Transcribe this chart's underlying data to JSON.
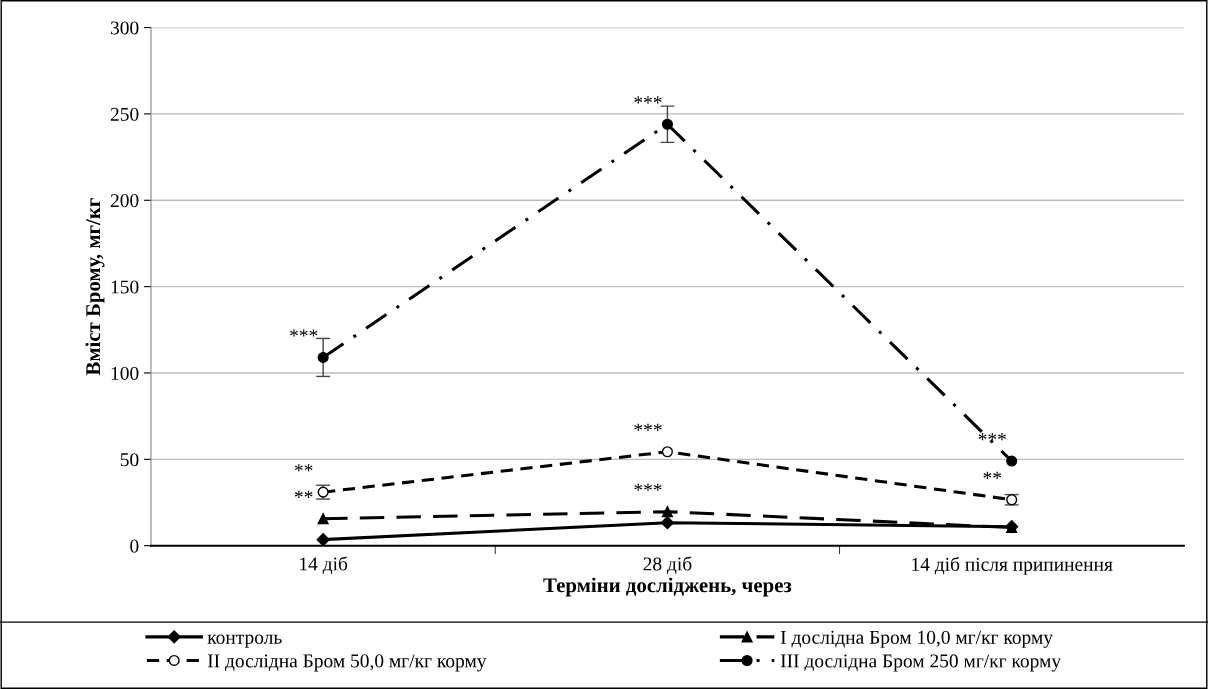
{
  "chart_data": {
    "type": "line",
    "xlabel": "Терміни досліджень, через",
    "ylabel": "Вміст Брому, мг/кг",
    "categories": [
      "14 діб",
      "28 діб",
      "14 діб після припинення"
    ],
    "ylim": [
      0,
      300
    ],
    "yticks": [
      0,
      50,
      100,
      150,
      200,
      250,
      300
    ],
    "grid": "y",
    "legend": "bottom",
    "series": [
      {
        "name": "контроль",
        "color": "#000000",
        "values": [
          3.5,
          13.3,
          11
        ],
        "marker": "diamond",
        "line_style": "solid"
      },
      {
        "name": "I дослідна Бром 10,0 мг/кг корму",
        "color": "#000000",
        "values": [
          15.6,
          19.7,
          10.5
        ],
        "marker": "triangle",
        "line_style": "dashed"
      },
      {
        "name": "II дослідна Бром 50,0 мг/кг корму",
        "color": "#000000",
        "values": [
          31,
          54.4,
          26.6
        ],
        "errors": [
          4,
          null,
          3
        ],
        "marker": "circle-open",
        "line_style": "dotted"
      },
      {
        "name": "III дослідна Бром 250 мг/кг корму",
        "color": "#000000",
        "values": [
          109,
          244,
          49
        ],
        "errors": [
          11,
          10.5,
          null
        ],
        "marker": "circle",
        "line_style": "dashdot"
      }
    ],
    "annotations": [
      {
        "text": "***",
        "x": "14 діб",
        "y": 109
      },
      {
        "text": "**",
        "x": "14 діб",
        "y": 31
      },
      {
        "text": "**",
        "x": "14 діб",
        "y": 15.6
      },
      {
        "text": "***",
        "x": "28 діб",
        "y": 244
      },
      {
        "text": "***",
        "x": "28 діб",
        "y": 54.4
      },
      {
        "text": "***",
        "x": "28 діб",
        "y": 19.7
      },
      {
        "text": "***",
        "x": "14 діб після припинення",
        "y": 49
      },
      {
        "text": "**",
        "x": "14 діб після припинення",
        "y": 26.6
      }
    ]
  }
}
